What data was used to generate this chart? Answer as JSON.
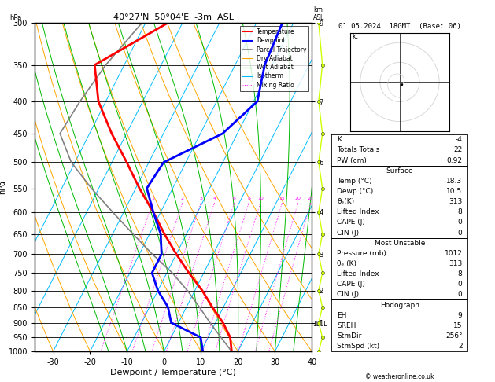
{
  "title_left": "40°27'N  50°04'E  -3m  ASL",
  "title_right": "01.05.2024  18GMT  (Base: 06)",
  "xlabel": "Dewpoint / Temperature (°C)",
  "ylabel_left": "hPa",
  "pressure_levels": [
    300,
    350,
    400,
    450,
    500,
    550,
    600,
    650,
    700,
    750,
    800,
    850,
    900,
    950,
    1000
  ],
  "temp_data": {
    "pressure": [
      1000,
      950,
      900,
      850,
      800,
      750,
      700,
      650,
      600,
      550,
      500,
      450,
      400,
      350,
      300
    ],
    "temperature": [
      18.3,
      16.0,
      12.0,
      7.0,
      2.0,
      -4.0,
      -10.0,
      -16.0,
      -22.0,
      -29.0,
      -36.0,
      -44.0,
      -52.0,
      -58.0,
      -44.0
    ]
  },
  "dewp_data": {
    "pressure": [
      1000,
      950,
      900,
      850,
      800,
      750,
      700,
      650,
      600,
      550,
      500,
      450,
      400,
      350,
      300
    ],
    "dewpoint": [
      10.5,
      8.0,
      -2.0,
      -5.0,
      -10.0,
      -14.0,
      -14.0,
      -17.0,
      -22.0,
      -27.0,
      -26.0,
      -14.0,
      -9.0,
      -12.0,
      -13.0
    ]
  },
  "parcel_data": {
    "pressure": [
      1000,
      950,
      900,
      850,
      800,
      750,
      700,
      650,
      600,
      550,
      500,
      450,
      400,
      350,
      300
    ],
    "temperature": [
      18.3,
      13.5,
      8.5,
      3.5,
      -2.0,
      -8.5,
      -16.5,
      -24.5,
      -33.0,
      -42.0,
      -51.0,
      -58.0,
      -57.0,
      -55.0,
      -51.0
    ]
  },
  "xlim": [
    -35,
    40
  ],
  "skew_factor": 45,
  "isotherm_values": [
    -50,
    -40,
    -30,
    -20,
    -10,
    0,
    10,
    20,
    30,
    40,
    50
  ],
  "dry_adiabat_values": [
    -40,
    -30,
    -20,
    -10,
    0,
    10,
    20,
    30,
    40,
    50,
    60
  ],
  "wet_adiabat_values": [
    -15,
    -10,
    -5,
    0,
    5,
    10,
    15,
    20,
    25,
    30,
    35
  ],
  "mixing_ratio_values": [
    1,
    2,
    3,
    4,
    6,
    8,
    10,
    15,
    20,
    25
  ],
  "km_ticks": {
    "pressures": [
      300,
      400,
      500,
      600,
      700,
      800,
      900
    ],
    "labels": [
      "9",
      "7",
      "6",
      "4",
      "3",
      "2",
      "1"
    ]
  },
  "lcl_pressure": 905,
  "colors": {
    "temperature": "#ff0000",
    "dewpoint": "#0000ff",
    "parcel": "#808080",
    "dry_adiabat": "#ffa500",
    "wet_adiabat": "#00bb00",
    "isotherm": "#00bbff",
    "mixing_ratio": "#ff00ff",
    "background": "#ffffff",
    "grid": "#000000",
    "wind_strip": "#ccff00"
  },
  "info_panel": {
    "K": "-4",
    "Totals_Totals": "22",
    "PW_cm": "0.92",
    "Surface_Temp": "18.3",
    "Surface_Dewp": "10.5",
    "Surface_theta_e": "313",
    "Surface_Lifted_Index": "8",
    "Surface_CAPE": "0",
    "Surface_CIN": "0",
    "MU_Pressure": "1012",
    "MU_theta_e": "313",
    "MU_Lifted_Index": "8",
    "MU_CAPE": "0",
    "MU_CIN": "0",
    "EH": "9",
    "SREH": "15",
    "StmDir": "256°",
    "StmSpd": "2"
  },
  "wind_data": {
    "pressures": [
      1000,
      950,
      900,
      850,
      800,
      750,
      700,
      650,
      600,
      550,
      500,
      450,
      400,
      350,
      300
    ],
    "u": [
      1,
      1,
      2,
      3,
      2,
      2,
      2,
      2,
      1,
      1,
      2,
      2,
      3,
      2,
      1
    ],
    "v": [
      1,
      1,
      1,
      1,
      1,
      2,
      1,
      1,
      2,
      2,
      3,
      4,
      5,
      6,
      7
    ]
  }
}
